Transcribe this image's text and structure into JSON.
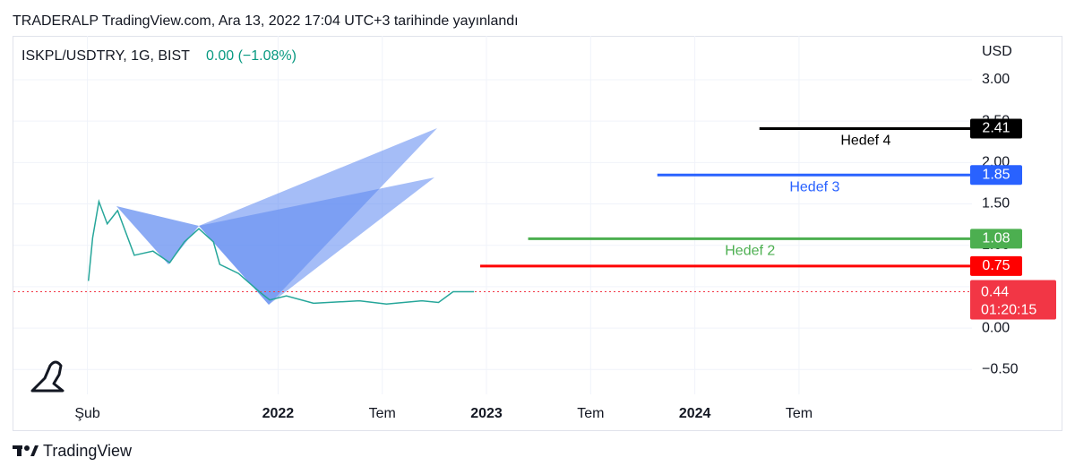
{
  "header": {
    "title": "TRADERALP TradingView.com, Ara 13, 2022 17:04 UTC+3 tarihinde yayınlandı"
  },
  "footer": {
    "brand": "TradingView"
  },
  "chart_data": {
    "type": "line",
    "symbol": "ISKPL/USDTRY, 1G, BIST",
    "change": "0.00 (−1.08%)",
    "y_unit": "USD",
    "x": [
      2021.09,
      2021.11,
      2021.14,
      2021.18,
      2021.23,
      2021.31,
      2021.4,
      2021.48,
      2021.55,
      2021.62,
      2021.69,
      2021.72,
      2021.81,
      2021.91,
      2021.96,
      2022.04,
      2022.17,
      2022.39,
      2022.52,
      2022.69,
      2022.77,
      2022.84,
      2022.94
    ],
    "series": [
      {
        "color": "#26a69a",
        "values": [
          0.57,
          1.09,
          1.53,
          1.26,
          1.42,
          0.88,
          0.93,
          0.79,
          1.04,
          1.2,
          1.04,
          0.77,
          0.66,
          0.44,
          0.34,
          0.39,
          0.3,
          0.33,
          0.29,
          0.33,
          0.31,
          0.44,
          0.44
        ]
      }
    ],
    "countdown": "01:20:15",
    "last_color": "#f23645",
    "levels": [
      {
        "name": "Hedef 4",
        "value": 2.41,
        "color": "#000000",
        "x_start": 2024.31
      },
      {
        "name": "Hedef 3",
        "value": 1.85,
        "color": "#2962ff",
        "x_start": 2023.82
      },
      {
        "name": "Hedef 2",
        "value": 1.08,
        "color": "#4caf50",
        "x_start": 2023.2
      },
      {
        "value": 0.75,
        "color": "#ff0000",
        "x_start": 2022.97
      }
    ],
    "xlim": [
      2020.73,
      2025.33
    ],
    "xticks": [
      {
        "value": 2021.085,
        "label": "Şub"
      },
      2022,
      {
        "value": 2022.5,
        "label": "Tem"
      },
      2023,
      {
        "value": 2023.5,
        "label": "Tem"
      },
      2024,
      {
        "value": 2024.5,
        "label": "Tem"
      }
    ],
    "ylim": [
      -0.8,
      3.53
    ],
    "yticks": [
      {
        "value": -0.5,
        "label": "−0.50"
      },
      {
        "value": 0,
        "label": "0.00"
      },
      {
        "value": 0.5,
        "label": "0.50"
      },
      {
        "value": 1,
        "label": "1.00"
      },
      {
        "value": 1.5,
        "label": "1.50"
      },
      {
        "value": 2,
        "label": "2.00"
      },
      {
        "value": 2.5,
        "label": "2.50"
      },
      {
        "value": 3,
        "label": "3.00"
      }
    ],
    "grid": true
  }
}
